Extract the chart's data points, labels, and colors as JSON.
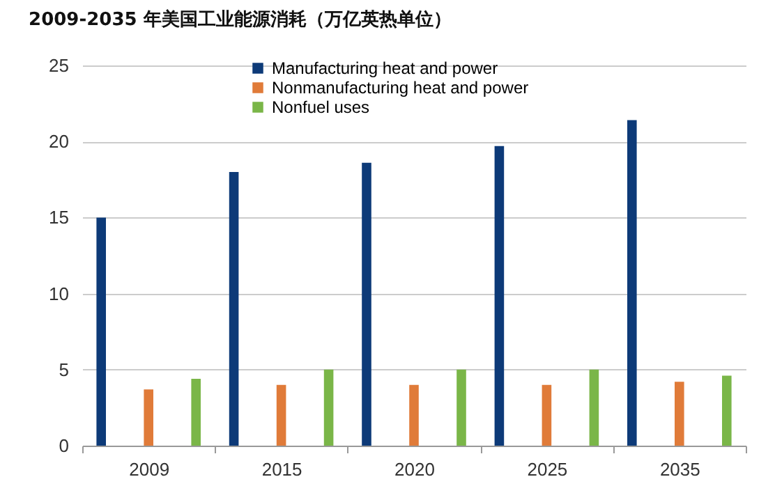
{
  "chart_data": {
    "type": "bar",
    "title": "2009-2035 年美国工业能源消耗（万亿英热单位）",
    "categories": [
      "2009",
      "2015",
      "2020",
      "2025",
      "2035"
    ],
    "series": [
      {
        "name": "Manufacturing heat and power",
        "color": "#0d3a78",
        "values": [
          15.0,
          18.0,
          18.6,
          19.7,
          21.4
        ]
      },
      {
        "name": "Nonmanufacturing heat and power",
        "color": "#e07b39",
        "values": [
          3.7,
          4.0,
          4.0,
          4.0,
          4.2
        ]
      },
      {
        "name": "Nonfuel uses",
        "color": "#7ab648",
        "values": [
          4.4,
          5.0,
          5.0,
          5.0,
          4.6
        ]
      }
    ],
    "ylim": [
      0,
      25
    ],
    "yticks": [
      0,
      5,
      10,
      15,
      20,
      25
    ],
    "grid": "y",
    "legend": "top"
  }
}
